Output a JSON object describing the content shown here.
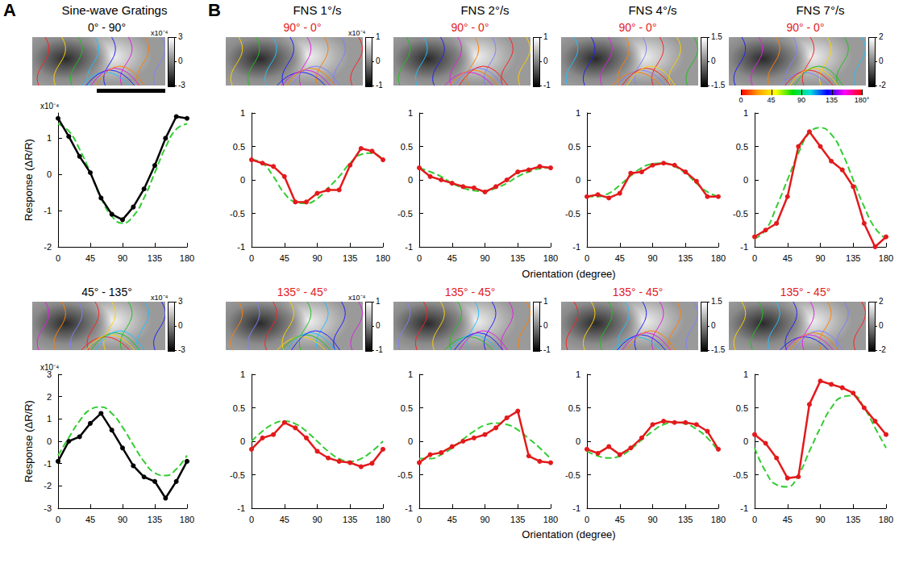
{
  "letters": [
    "A",
    "B"
  ],
  "column_heads": [
    "Sine-wave Gratings",
    "FNS 1°/s",
    "FNS 2°/s",
    "FNS 4°/s",
    "FNS 7°/s"
  ],
  "row_xlabels": [
    "Orientation (degree)",
    "Orientation (degree)"
  ],
  "orientation_scale": {
    "range": [
      0,
      180
    ],
    "ticks": [
      0,
      45,
      90,
      135,
      {
        "value": 180,
        "label": "180°"
      }
    ]
  },
  "chart_data": [
    {
      "type": "line",
      "title": "0° - 90°",
      "ylabel": "Response (ΔR/R)",
      "multiplier": "x10⁻⁴",
      "map": {
        "multiplier": "x10⁻⁴",
        "colorbar_range": [
          -3,
          3
        ],
        "colorbar_ticks": [
          3,
          0,
          -3
        ]
      },
      "x": [
        0,
        15,
        30,
        45,
        60,
        75,
        90,
        105,
        120,
        135,
        150,
        165,
        180
      ],
      "xlim": [
        0,
        180
      ],
      "xticks": [
        0,
        45,
        90,
        135,
        180
      ],
      "ylim": [
        -2,
        1.7
      ],
      "yticks": [
        -2,
        -1,
        0,
        1
      ],
      "grid": false,
      "series": [
        {
          "color": "#000000",
          "marker": "circle",
          "line_style": "solid",
          "values": [
            1.55,
            1.05,
            0.5,
            0.05,
            -0.65,
            -1.1,
            -1.25,
            -0.9,
            -0.4,
            0.25,
            1.0,
            1.6,
            1.55
          ]
        },
        {
          "color": "#33cc33",
          "marker": "none",
          "line_style": "dashed",
          "values": [
            1.4,
            1.2,
            0.7,
            0.05,
            -0.65,
            -1.15,
            -1.35,
            -1.15,
            -0.65,
            0.05,
            0.75,
            1.25,
            1.4
          ]
        }
      ]
    },
    {
      "type": "line",
      "title": "90° - 0°",
      "map": {
        "multiplier": "x10⁻⁴",
        "colorbar_range": [
          -1,
          1
        ],
        "colorbar_ticks": [
          1,
          0,
          -1
        ]
      },
      "x": [
        0,
        15,
        30,
        45,
        60,
        75,
        90,
        105,
        120,
        135,
        150,
        165,
        180
      ],
      "xlim": [
        0,
        180
      ],
      "xticks": [
        0,
        45,
        90,
        135,
        180
      ],
      "ylim": [
        -1,
        1
      ],
      "yticks": [
        -1,
        -0.5,
        0,
        0.5,
        1
      ],
      "grid": false,
      "series": [
        {
          "color": "#e31a1c",
          "marker": "circle",
          "line_style": "solid",
          "values": [
            0.3,
            0.25,
            0.2,
            0.05,
            -0.33,
            -0.33,
            -0.2,
            -0.15,
            -0.15,
            0.22,
            0.47,
            0.43,
            0.3
          ]
        },
        {
          "color": "#33cc33",
          "marker": "none",
          "line_style": "dashed",
          "values": [
            0.3,
            0.25,
            0.05,
            -0.2,
            -0.33,
            -0.35,
            -0.28,
            -0.12,
            0.05,
            0.25,
            0.38,
            0.4,
            0.3
          ]
        }
      ]
    },
    {
      "type": "line",
      "title": "90° - 0°",
      "map": {
        "colorbar_range": [
          -1,
          1
        ],
        "colorbar_ticks": [
          1,
          0,
          -1
        ]
      },
      "x": [
        0,
        15,
        30,
        45,
        60,
        75,
        90,
        105,
        120,
        135,
        150,
        165,
        180
      ],
      "xlim": [
        0,
        180
      ],
      "xticks": [
        0,
        45,
        90,
        135,
        180
      ],
      "ylim": [
        -1,
        1
      ],
      "yticks": [
        -1,
        -0.5,
        0,
        0.5,
        1
      ],
      "grid": false,
      "series": [
        {
          "color": "#e31a1c",
          "marker": "circle",
          "line_style": "solid",
          "values": [
            0.18,
            0.05,
            0.0,
            -0.05,
            -0.1,
            -0.12,
            -0.18,
            -0.1,
            0.0,
            0.12,
            0.15,
            0.2,
            0.18
          ]
        },
        {
          "color": "#33cc33",
          "marker": "none",
          "line_style": "dashed",
          "values": [
            0.18,
            0.12,
            0.05,
            -0.05,
            -0.12,
            -0.16,
            -0.17,
            -0.12,
            -0.05,
            0.05,
            0.12,
            0.17,
            0.18
          ]
        }
      ]
    },
    {
      "type": "line",
      "title": "90° - 0°",
      "map": {
        "colorbar_range": [
          -1.5,
          1.5
        ],
        "colorbar_ticks": [
          1.5,
          0,
          -1.5
        ]
      },
      "x": [
        0,
        15,
        30,
        45,
        60,
        75,
        90,
        105,
        120,
        135,
        150,
        165,
        180
      ],
      "xlim": [
        0,
        180
      ],
      "xticks": [
        0,
        45,
        90,
        135,
        180
      ],
      "ylim": [
        -1,
        1
      ],
      "yticks": [
        -1,
        -0.5,
        0,
        0.5,
        1
      ],
      "grid": false,
      "series": [
        {
          "color": "#e31a1c",
          "marker": "circle",
          "line_style": "solid",
          "values": [
            -0.25,
            -0.22,
            -0.27,
            -0.2,
            0.1,
            0.12,
            0.22,
            0.25,
            0.22,
            0.12,
            -0.02,
            -0.25,
            -0.25
          ]
        },
        {
          "color": "#33cc33",
          "marker": "none",
          "line_style": "dashed",
          "values": [
            -0.25,
            -0.25,
            -0.2,
            -0.08,
            0.06,
            0.18,
            0.24,
            0.25,
            0.2,
            0.1,
            -0.05,
            -0.18,
            -0.25
          ]
        }
      ]
    },
    {
      "type": "line",
      "title": "90° - 0°",
      "map": {
        "colorbar_range": [
          -2,
          2
        ],
        "colorbar_ticks": [
          2,
          0,
          -2
        ]
      },
      "x": [
        0,
        15,
        30,
        45,
        60,
        75,
        90,
        105,
        120,
        135,
        150,
        165,
        180
      ],
      "xlim": [
        0,
        180
      ],
      "xticks": [
        0,
        45,
        90,
        135,
        180
      ],
      "ylim": [
        -1,
        1
      ],
      "yticks": [
        -1,
        -0.5,
        0,
        0.5,
        1
      ],
      "grid": false,
      "series": [
        {
          "color": "#e31a1c",
          "marker": "circle",
          "line_style": "solid",
          "values": [
            -0.85,
            -0.75,
            -0.65,
            -0.25,
            0.5,
            0.72,
            0.5,
            0.28,
            0.15,
            -0.1,
            -0.65,
            -1.0,
            -0.85
          ]
        },
        {
          "color": "#33cc33",
          "marker": "none",
          "line_style": "dashed",
          "values": [
            -0.88,
            -0.75,
            -0.4,
            0.0,
            0.4,
            0.7,
            0.78,
            0.68,
            0.4,
            0.0,
            -0.4,
            -0.72,
            -0.88
          ]
        }
      ]
    },
    {
      "type": "line",
      "title": "45° - 135°",
      "ylabel": "Response (ΔR/R)",
      "multiplier": "x10⁻⁴",
      "map": {
        "multiplier": "x10⁻⁴",
        "colorbar_range": [
          -3,
          3
        ],
        "colorbar_ticks": [
          3,
          0,
          -3
        ]
      },
      "x": [
        0,
        15,
        30,
        45,
        60,
        75,
        90,
        105,
        120,
        135,
        150,
        165,
        180
      ],
      "xlim": [
        0,
        180
      ],
      "xticks": [
        0,
        45,
        90,
        135,
        180
      ],
      "ylim": [
        -3,
        3
      ],
      "yticks": [
        -3,
        -2,
        -1,
        0,
        1,
        2,
        3
      ],
      "grid": false,
      "series": [
        {
          "color": "#000000",
          "marker": "circle",
          "line_style": "solid",
          "values": [
            -0.9,
            0.0,
            0.2,
            0.8,
            1.25,
            0.5,
            -0.3,
            -1.1,
            -1.6,
            -1.8,
            -2.55,
            -1.8,
            -0.9
          ]
        },
        {
          "color": "#33cc33",
          "marker": "none",
          "line_style": "dashed",
          "values": [
            -0.63,
            0.16,
            0.91,
            1.42,
            1.54,
            1.25,
            0.63,
            -0.16,
            -0.91,
            -1.42,
            -1.54,
            -1.25,
            -0.63
          ]
        }
      ]
    },
    {
      "type": "line",
      "title": "135° - 45°",
      "map": {
        "multiplier": "x10⁻⁴",
        "colorbar_range": [
          -1,
          1
        ],
        "colorbar_ticks": [
          1,
          0,
          -1
        ]
      },
      "x": [
        0,
        15,
        30,
        45,
        60,
        75,
        90,
        105,
        120,
        135,
        150,
        165,
        180
      ],
      "xlim": [
        0,
        180
      ],
      "xticks": [
        0,
        45,
        90,
        135,
        180
      ],
      "ylim": [
        -1,
        1
      ],
      "yticks": [
        -1,
        -0.5,
        0,
        0.5,
        1
      ],
      "grid": false,
      "series": [
        {
          "color": "#e31a1c",
          "marker": "circle",
          "line_style": "solid",
          "values": [
            -0.12,
            0.05,
            0.1,
            0.28,
            0.2,
            0.05,
            -0.15,
            -0.25,
            -0.3,
            -0.32,
            -0.38,
            -0.33,
            -0.12
          ]
        },
        {
          "color": "#33cc33",
          "marker": "none",
          "line_style": "dashed",
          "values": [
            0.0,
            0.15,
            0.26,
            0.3,
            0.26,
            0.15,
            0.0,
            -0.15,
            -0.26,
            -0.3,
            -0.26,
            -0.15,
            0.0
          ]
        }
      ]
    },
    {
      "type": "line",
      "title": "135° - 45°",
      "map": {
        "colorbar_range": [
          -1,
          1
        ],
        "colorbar_ticks": [
          1,
          0,
          -1
        ]
      },
      "x": [
        0,
        15,
        30,
        45,
        60,
        75,
        90,
        105,
        120,
        135,
        150,
        165,
        180
      ],
      "xlim": [
        0,
        180
      ],
      "xticks": [
        0,
        45,
        90,
        135,
        180
      ],
      "ylim": [
        -1,
        1
      ],
      "yticks": [
        -1,
        -0.5,
        0,
        0.5,
        1
      ],
      "grid": false,
      "series": [
        {
          "color": "#e31a1c",
          "marker": "circle",
          "line_style": "solid",
          "values": [
            -0.32,
            -0.2,
            -0.17,
            -0.08,
            0.0,
            0.05,
            0.1,
            0.2,
            0.35,
            0.45,
            -0.22,
            -0.3,
            -0.32
          ]
        },
        {
          "color": "#33cc33",
          "marker": "none",
          "line_style": "dashed",
          "values": [
            -0.26,
            -0.26,
            -0.2,
            -0.1,
            0.03,
            0.15,
            0.24,
            0.27,
            0.25,
            0.17,
            0.04,
            -0.1,
            -0.26
          ]
        }
      ]
    },
    {
      "type": "line",
      "title": "135° - 45°",
      "map": {
        "colorbar_range": [
          -1.5,
          1.5
        ],
        "colorbar_ticks": [
          1.5,
          0,
          -1.5
        ]
      },
      "x": [
        0,
        15,
        30,
        45,
        60,
        75,
        90,
        105,
        120,
        135,
        150,
        165,
        180
      ],
      "xlim": [
        0,
        180
      ],
      "xticks": [
        0,
        45,
        90,
        135,
        180
      ],
      "ylim": [
        -1,
        1
      ],
      "yticks": [
        -1,
        -0.5,
        0,
        0.5,
        1
      ],
      "grid": false,
      "series": [
        {
          "color": "#e31a1c",
          "marker": "circle",
          "line_style": "solid",
          "values": [
            -0.12,
            -0.18,
            -0.08,
            -0.2,
            -0.1,
            0.05,
            0.25,
            0.3,
            0.28,
            0.28,
            0.25,
            0.15,
            -0.12
          ]
        },
        {
          "color": "#33cc33",
          "marker": "none",
          "line_style": "dashed",
          "values": [
            -0.15,
            -0.22,
            -0.25,
            -0.22,
            -0.12,
            0.02,
            0.15,
            0.25,
            0.28,
            0.26,
            0.18,
            0.05,
            -0.15
          ]
        }
      ]
    },
    {
      "type": "line",
      "title": "135° - 45°",
      "map": {
        "colorbar_range": [
          -2,
          2
        ],
        "colorbar_ticks": [
          2,
          0,
          -2
        ]
      },
      "x": [
        0,
        15,
        30,
        45,
        60,
        75,
        90,
        105,
        120,
        135,
        150,
        165,
        180
      ],
      "xlim": [
        0,
        180
      ],
      "xticks": [
        0,
        45,
        90,
        135,
        180
      ],
      "ylim": [
        -1,
        1
      ],
      "yticks": [
        -1,
        -0.5,
        0,
        0.5,
        1
      ],
      "grid": false,
      "series": [
        {
          "color": "#e31a1c",
          "marker": "circle",
          "line_style": "solid",
          "values": [
            0.1,
            -0.03,
            -0.25,
            -0.55,
            -0.53,
            0.55,
            0.9,
            0.85,
            0.8,
            0.72,
            0.5,
            0.3,
            0.1
          ]
        },
        {
          "color": "#33cc33",
          "marker": "none",
          "line_style": "dashed",
          "values": [
            -0.1,
            -0.45,
            -0.65,
            -0.68,
            -0.5,
            -0.15,
            0.2,
            0.5,
            0.66,
            0.68,
            0.5,
            0.2,
            -0.1
          ]
        }
      ]
    }
  ]
}
